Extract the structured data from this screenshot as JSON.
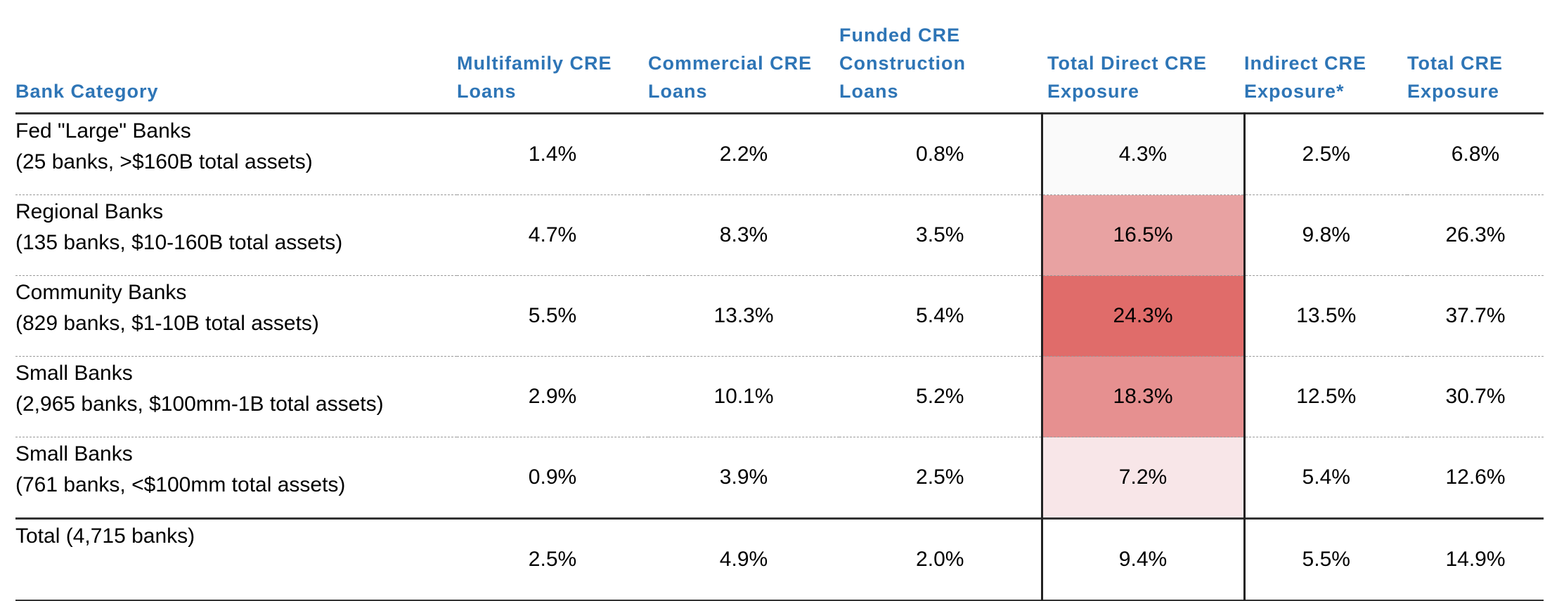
{
  "headers": {
    "bank_category": "Bank Category",
    "multifamily": [
      "Multifamily CRE",
      "Loans"
    ],
    "commercial": [
      "Commercial CRE",
      "Loans"
    ],
    "construction": [
      "Funded CRE",
      "Construction",
      "Loans"
    ],
    "total_direct": [
      "Total Direct CRE",
      "Exposure"
    ],
    "indirect": [
      "Indirect CRE",
      "Exposure*"
    ],
    "total_cre": [
      "Total CRE",
      "Exposure"
    ]
  },
  "colors": {
    "header_text": "#2e75b6",
    "heat_levels": {
      "4.3%": "#fafafa",
      "16.5%": "#e8a2a2",
      "24.3%": "#e06c6a",
      "18.3%": "#e69090",
      "7.2%": "#f8e6e8",
      "9.4%": "#ffffff"
    }
  },
  "rows": [
    {
      "name": "Fed \"Large\" Banks",
      "detail": "(25 banks, >$160B total assets)",
      "multifamily": "1.4%",
      "commercial": "2.2%",
      "construction": "0.8%",
      "total_direct": "4.3%",
      "indirect": "2.5%",
      "total_cre": "6.8%"
    },
    {
      "name": "Regional Banks",
      "detail": "(135 banks, $10-160B total assets)",
      "multifamily": "4.7%",
      "commercial": "8.3%",
      "construction": "3.5%",
      "total_direct": "16.5%",
      "indirect": "9.8%",
      "total_cre": "26.3%"
    },
    {
      "name": "Community Banks",
      "detail": "(829 banks, $1-10B total assets)",
      "multifamily": "5.5%",
      "commercial": "13.3%",
      "construction": "5.4%",
      "total_direct": "24.3%",
      "indirect": "13.5%",
      "total_cre": "37.7%"
    },
    {
      "name": "Small Banks",
      "detail": "(2,965 banks, $100mm-1B total assets)",
      "multifamily": "2.9%",
      "commercial": "10.1%",
      "construction": "5.2%",
      "total_direct": "18.3%",
      "indirect": "12.5%",
      "total_cre": "30.7%"
    },
    {
      "name": "Small Banks",
      "detail": "(761 banks, <$100mm total assets)",
      "multifamily": "0.9%",
      "commercial": "3.9%",
      "construction": "2.5%",
      "total_direct": "7.2%",
      "indirect": "5.4%",
      "total_cre": "12.6%"
    }
  ],
  "total": {
    "name": "Total (4,715 banks)",
    "multifamily": "2.5%",
    "commercial": "4.9%",
    "construction": "2.0%",
    "total_direct": "9.4%",
    "indirect": "5.5%",
    "total_cre": "14.9%"
  }
}
